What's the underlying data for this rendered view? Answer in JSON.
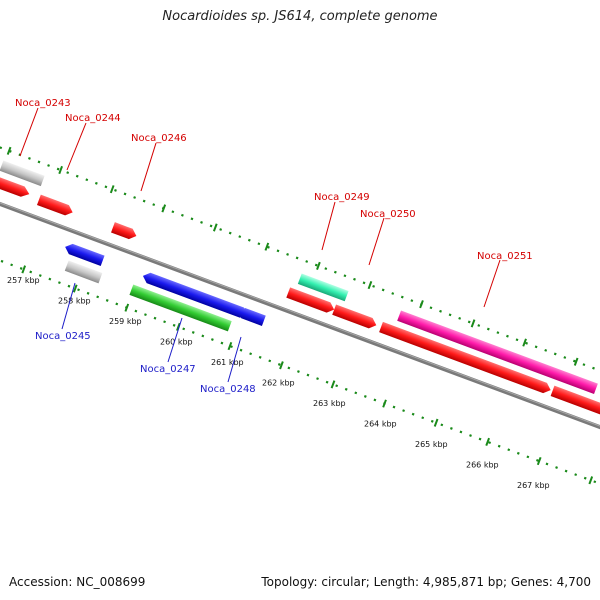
{
  "header": {
    "title": "Nocardioides sp. JS614, complete genome"
  },
  "footer": {
    "accession": "Accession: NC_008699",
    "topology": "Topology: circular; Length: 4,985,871 bp; Genes: 4,700"
  },
  "colors": {
    "backbone": "#7a7a7a",
    "tick": "#1a8a1a",
    "label_forward": "#d40000",
    "label_reverse": "#1c1cc8",
    "gene_red": "#ff1a1a",
    "gene_blue": "#1a1aee",
    "gene_gray": "#c8c8c8",
    "gene_green": "#33cc33",
    "gene_teal": "#33f0b0",
    "gene_magenta": "#ff1aaa"
  },
  "scale_labels": [
    "257 kbp",
    "258 kbp",
    "259 kbp",
    "260 kbp",
    "261 kbp",
    "262 kbp",
    "263 kbp",
    "264 kbp",
    "265 kbp",
    "266 kbp",
    "267 kbp"
  ],
  "gene_labels": {
    "forward": [
      "Noca_0243",
      "Noca_0244",
      "Noca_0246",
      "Noca_0249",
      "Noca_0250",
      "Noca_0251"
    ],
    "reverse": [
      "Noca_0245",
      "Noca_0247",
      "Noca_0248"
    ]
  }
}
